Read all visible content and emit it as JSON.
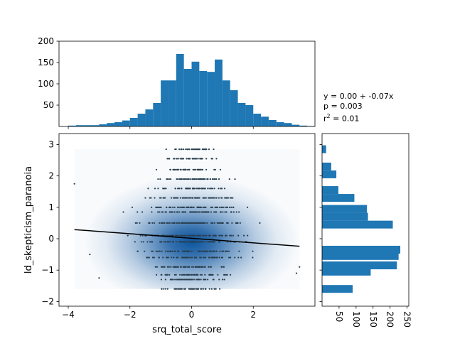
{
  "chart_data": [
    {
      "type": "scatter",
      "name": "main",
      "xlabel": "srq_total_score",
      "ylabel": "ld_skepticism_paranoia",
      "xlim": [
        -4.3,
        4.0
      ],
      "ylim": [
        -2.15,
        3.35
      ],
      "x_ticks": [
        -4,
        -2,
        0,
        2
      ],
      "x_tick_labels": [
        "−4",
        "−2",
        "0",
        "2"
      ],
      "y_ticks": [
        -2,
        -1,
        0,
        1,
        2,
        3
      ],
      "y_tick_labels": [
        "−2",
        "−1",
        "0",
        "1",
        "2",
        "3"
      ],
      "density_background": {
        "x_range": [
          -3.8,
          3.5
        ],
        "y_range": [
          -1.6,
          2.85
        ],
        "center": [
          0.0,
          -0.1
        ],
        "color": "#08519c"
      },
      "y_levels": [
        -1.6,
        -1.3,
        -1.15,
        -0.9,
        -0.6,
        -0.4,
        -0.1,
        0.1,
        0.5,
        0.85,
        1.0,
        1.3,
        1.6,
        1.9,
        2.2,
        2.55,
        2.85
      ],
      "points_color": "#2a3f4f",
      "regression_line": {
        "intercept": 0.0,
        "slope": -0.07,
        "x_range": [
          -3.8,
          3.5
        ],
        "y_at_ends": [
          0.29,
          -0.24
        ],
        "color": "#000000"
      },
      "grid": false
    },
    {
      "type": "bar",
      "name": "top_histogram",
      "orientation": "vertical",
      "bin_edges_start": -4.0,
      "bin_width": 0.25,
      "values": [
        2,
        3,
        3,
        3,
        5,
        8,
        10,
        14,
        20,
        30,
        40,
        55,
        108,
        108,
        170,
        135,
        152,
        130,
        128,
        157,
        108,
        85,
        55,
        50,
        30,
        23,
        15,
        10,
        8,
        4,
        2,
        1
      ],
      "ylim": [
        0,
        200
      ],
      "y_ticks": [
        50,
        100,
        150,
        200
      ],
      "y_tick_labels": [
        "50",
        "100",
        "150",
        "200"
      ],
      "color": "#1f77b4"
    },
    {
      "type": "bar",
      "name": "right_histogram",
      "orientation": "horizontal",
      "bins": [
        {
          "y": -1.6,
          "count": 90
        },
        {
          "y": -1.3,
          "count": 0
        },
        {
          "y": -1.05,
          "count": 143
        },
        {
          "y": -0.85,
          "count": 220
        },
        {
          "y": -0.55,
          "count": 225
        },
        {
          "y": -0.35,
          "count": 230
        },
        {
          "y": -0.1,
          "count": 0
        },
        {
          "y": 0.45,
          "count": 208
        },
        {
          "y": 0.7,
          "count": 135
        },
        {
          "y": 0.95,
          "count": 132
        },
        {
          "y": 1.3,
          "count": 95
        },
        {
          "y": 1.55,
          "count": 48
        },
        {
          "y": 2.05,
          "count": 42
        },
        {
          "y": 2.3,
          "count": 27
        },
        {
          "y": 2.85,
          "count": 12
        }
      ],
      "xlim": [
        0,
        255
      ],
      "x_ticks": [
        50,
        100,
        150,
        200,
        250
      ],
      "x_tick_labels": [
        "50",
        "100",
        "150",
        "200",
        "250"
      ],
      "color": "#1f77b4"
    }
  ],
  "annotation": {
    "line1": "y = 0.00 + -0.07x",
    "line2": "p = 0.003",
    "line3_prefix": "r",
    "line3_sup": "2",
    "line3_suffix": " = 0.01"
  }
}
